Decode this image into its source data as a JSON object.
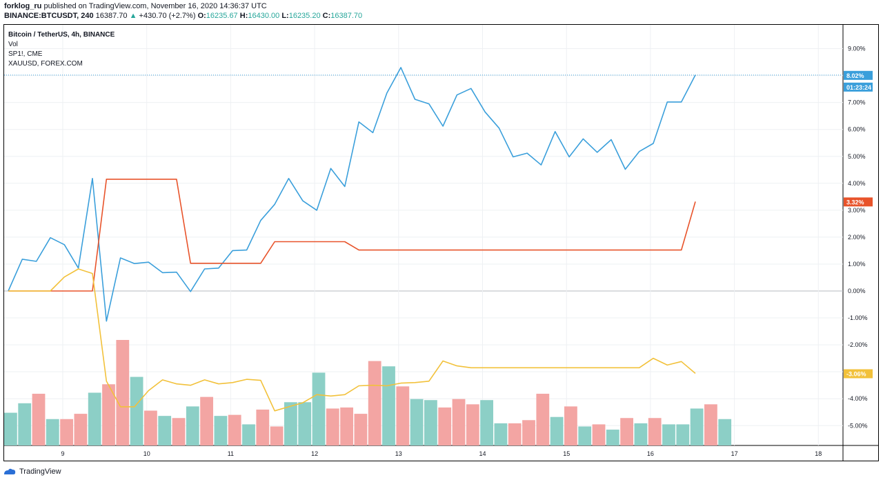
{
  "header": {
    "author": "forklog_ru",
    "published": "published on TradingView.com, November 16, 2020 14:36:37 UTC",
    "symbol": "BINANCE:BTCUSDT, 240",
    "last": "16387.70",
    "change": "+430.70 (+2.7%)",
    "o_label": "O:",
    "o_value": "16235.67",
    "h_label": "H:",
    "h_value": "16430.00",
    "l_label": "L:",
    "l_value": "16235.20",
    "c_label": "C:",
    "c_value": "16387.70"
  },
  "legend": {
    "main": "Bitcoin / TetherUS, 4h, BINANCE",
    "vol": "Vol",
    "sp": "SP1!, CME",
    "xau": "XAUUSD, FOREX.COM"
  },
  "footer": {
    "brand": "TradingView"
  },
  "colors": {
    "btc": "#3a9fdb",
    "sp": "#e8532a",
    "xau": "#f2c13a",
    "vol_up": "#8ccfc6",
    "vol_down": "#f3a5a3",
    "grid": "#eef0f3"
  },
  "chart_data": {
    "type": "line",
    "y_unit": "%",
    "y_ticks": [
      "9.00%",
      "8.00%",
      "7.00%",
      "6.00%",
      "5.00%",
      "4.00%",
      "3.00%",
      "2.00%",
      "1.00%",
      "0.00%",
      "-1.00%",
      "-2.00%",
      "-3.00%",
      "-4.00%",
      "-5.00%"
    ],
    "x_ticks": [
      "9",
      "10",
      "11",
      "12",
      "13",
      "14",
      "15",
      "16",
      "17",
      "18"
    ],
    "ylim": [
      -5.5,
      9.5
    ],
    "badges": {
      "btc": "8.02%",
      "btc_timer": "01:23:24",
      "sp": "3.32%",
      "xau": "-3.06%"
    },
    "series": [
      {
        "key": "btc",
        "values": [
          0.0,
          1.18,
          1.1,
          1.98,
          1.72,
          0.85,
          4.18,
          -1.12,
          1.23,
          1.02,
          1.07,
          0.68,
          0.7,
          -0.02,
          0.82,
          0.85,
          1.5,
          1.52,
          2.62,
          3.22,
          4.18,
          3.35,
          3.0,
          4.55,
          3.88,
          6.28,
          5.88,
          7.35,
          8.3,
          7.12,
          6.95,
          6.12,
          7.28,
          7.52,
          6.65,
          6.05,
          4.98,
          5.12,
          4.68,
          5.92,
          4.98,
          5.65,
          5.15,
          5.62,
          4.52,
          5.18,
          5.48,
          7.02,
          7.02,
          8.02
        ]
      },
      {
        "key": "sp",
        "values": [
          0.0,
          0.0,
          0.0,
          0.0,
          0.0,
          0.0,
          0.0,
          4.15,
          4.15,
          4.15,
          4.15,
          4.15,
          4.15,
          1.03,
          1.03,
          1.03,
          1.03,
          1.03,
          1.03,
          1.83,
          1.83,
          1.83,
          1.83,
          1.83,
          1.83,
          1.52,
          1.52,
          1.52,
          1.52,
          1.52,
          1.52,
          1.52,
          1.52,
          1.52,
          1.52,
          1.52,
          1.52,
          1.52,
          1.52,
          1.52,
          1.52,
          1.52,
          1.52,
          1.52,
          1.52,
          1.52,
          1.52,
          1.52,
          1.52,
          3.32
        ]
      },
      {
        "key": "xau",
        "values": [
          0.0,
          0.0,
          0.0,
          0.0,
          0.52,
          0.82,
          0.65,
          -3.35,
          -4.3,
          -4.3,
          -3.7,
          -3.3,
          -3.45,
          -3.5,
          -3.3,
          -3.45,
          -3.4,
          -3.28,
          -3.32,
          -4.45,
          -4.3,
          -4.15,
          -3.85,
          -3.9,
          -3.85,
          -3.52,
          -3.5,
          -3.52,
          -3.42,
          -3.4,
          -3.35,
          -2.6,
          -2.78,
          -2.85,
          -2.85,
          -2.85,
          -2.85,
          -2.85,
          -2.85,
          -2.85,
          -2.85,
          -2.85,
          -2.85,
          -2.85,
          -2.85,
          -2.85,
          -2.5,
          -2.75,
          -2.62,
          -3.06
        ]
      }
    ],
    "volume": {
      "heights": [
        0.31,
        0.4,
        0.49,
        0.25,
        0.25,
        0.3,
        0.5,
        0.58,
        1.0,
        0.65,
        0.33,
        0.28,
        0.26,
        0.37,
        0.46,
        0.28,
        0.29,
        0.2,
        0.34,
        0.18,
        0.41,
        0.41,
        0.69,
        0.35,
        0.36,
        0.3,
        0.8,
        0.75,
        0.56,
        0.44,
        0.43,
        0.36,
        0.44,
        0.39,
        0.43,
        0.21,
        0.21,
        0.24,
        0.49,
        0.27,
        0.37,
        0.18,
        0.2,
        0.15,
        0.26,
        0.21,
        0.26,
        0.2,
        0.2,
        0.35,
        0.39,
        0.25
      ],
      "up": [
        1,
        1,
        0,
        1,
        0,
        0,
        1,
        0,
        0,
        1,
        0,
        1,
        0,
        1,
        0,
        1,
        0,
        1,
        0,
        0,
        1,
        1,
        1,
        0,
        0,
        0,
        0,
        1,
        0,
        1,
        1,
        0,
        0,
        0,
        1,
        1,
        0,
        0,
        0,
        1,
        0,
        1,
        0,
        1,
        0,
        1,
        0,
        1,
        1,
        1,
        0,
        1
      ]
    }
  }
}
